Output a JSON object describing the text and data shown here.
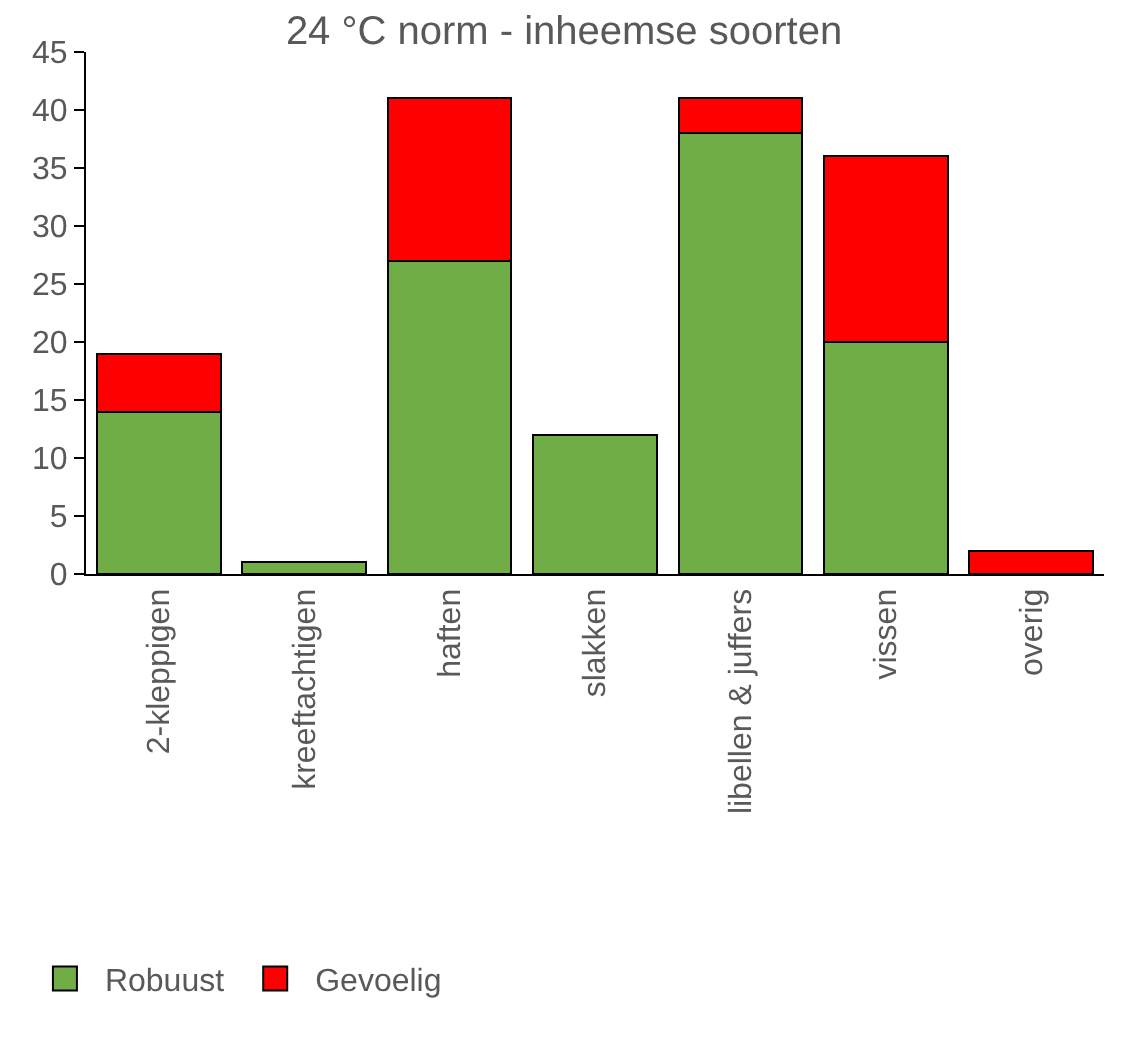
{
  "chart_data": {
    "type": "bar",
    "title": "24 °C norm - inheemse soorten",
    "stacked": true,
    "categories": [
      "2-kleppigen",
      "kreeftachtigen",
      "haften",
      "slakken",
      "libellen & juffers",
      "vissen",
      "overig"
    ],
    "series": [
      {
        "name": "Robuust",
        "color": "#70ad47",
        "values": [
          14,
          1,
          27,
          12,
          38,
          20,
          0
        ]
      },
      {
        "name": "Gevoelig",
        "color": "#ff0000",
        "values": [
          5,
          0,
          14,
          0,
          3,
          16,
          2
        ]
      }
    ],
    "ylim": [
      0,
      45
    ],
    "yticks": [
      0,
      5,
      10,
      15,
      20,
      25,
      30,
      35,
      40,
      45
    ],
    "legend": "bottom left"
  }
}
